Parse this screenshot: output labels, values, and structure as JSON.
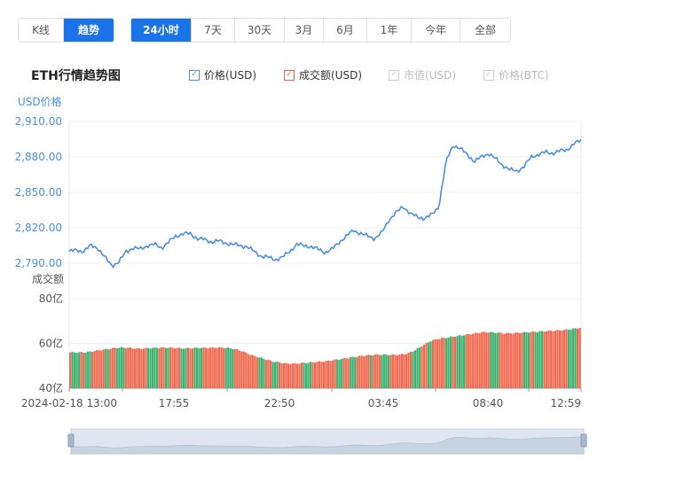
{
  "mode_tabs": [
    {
      "label": "K线",
      "active": false
    },
    {
      "label": "趋势",
      "active": true
    }
  ],
  "range_tabs": [
    {
      "label": "24小时",
      "active": true
    },
    {
      "label": "7天",
      "active": false
    },
    {
      "label": "30天",
      "active": false
    },
    {
      "label": "3月",
      "active": false
    },
    {
      "label": "6月",
      "active": false
    },
    {
      "label": "1年",
      "active": false
    },
    {
      "label": "今年",
      "active": false
    },
    {
      "label": "全部",
      "active": false
    }
  ],
  "chart_title": "ETH行情趋势图",
  "legend": [
    {
      "label": "价格(USD)",
      "checked": true,
      "enabled": true,
      "color": "#4a90e2"
    },
    {
      "label": "成交额(USD)",
      "checked": true,
      "enabled": true,
      "color": "#e8604c"
    },
    {
      "label": "市值(USD)",
      "checked": true,
      "enabled": false,
      "color": "#cccccc"
    },
    {
      "label": "价格(BTC)",
      "checked": true,
      "enabled": false,
      "color": "#cccccc"
    }
  ],
  "colors": {
    "accent": "#1a73e8",
    "price_line": "#4a90e2",
    "vol_up": "#3cb371",
    "vol_down": "#f06a50",
    "axis_text": "#4a90e2"
  },
  "chart_data": {
    "type": "line",
    "price_axis_label": "USD价格",
    "volume_axis_label": "成交额",
    "x_ticks": [
      "2024-02-18 13:00",
      "17:55",
      "22:50",
      "03:45",
      "08:40",
      "12:59"
    ],
    "price_ticks": [
      "2,910.00",
      "2,880.00",
      "2,850.00",
      "2,820.00",
      "2,790.00"
    ],
    "volume_ticks": [
      "80亿",
      "60亿",
      "40亿"
    ],
    "price_ylim": [
      2790,
      2910
    ],
    "volume_ylim": [
      40,
      80
    ],
    "price_series": {
      "name": "价格(USD)",
      "values": [
        2800,
        2801,
        2800,
        2805,
        2803,
        2795,
        2788,
        2791,
        2800,
        2803,
        2802,
        2805,
        2806,
        2803,
        2808,
        2813,
        2815,
        2815,
        2811,
        2810,
        2808,
        2809,
        2807,
        2806,
        2805,
        2804,
        2800,
        2796,
        2795,
        2793,
        2795,
        2800,
        2806,
        2805,
        2804,
        2802,
        2799,
        2802,
        2808,
        2813,
        2818,
        2815,
        2813,
        2811,
        2816,
        2827,
        2833,
        2838,
        2832,
        2829,
        2828,
        2831,
        2838,
        2876,
        2890,
        2887,
        2882,
        2876,
        2880,
        2883,
        2878,
        2873,
        2869,
        2868,
        2872,
        2880,
        2882,
        2884,
        2883,
        2885,
        2886,
        2891,
        2894
      ]
    },
    "volume_series": {
      "name": "成交额(USD)",
      "values": [
        56,
        56,
        56,
        56.5,
        57,
        57.5,
        58,
        58.2,
        58,
        57.6,
        57.8,
        58,
        58.1,
        58.2,
        58,
        57.8,
        57.9,
        58,
        58,
        58.1,
        58.2,
        58,
        57.5,
        56.5,
        55,
        54,
        53,
        52,
        51.5,
        51,
        51,
        51.2,
        51.5,
        51.8,
        52,
        52.5,
        53,
        53.5,
        54,
        54.5,
        54.8,
        55,
        55,
        54.9,
        55,
        55.5,
        57,
        59,
        61,
        62,
        62.5,
        63,
        63.5,
        64,
        64.5,
        65,
        65,
        64.8,
        64.5,
        64.6,
        64.8,
        65,
        65.2,
        65.4,
        65.6,
        65.8,
        66,
        66.5,
        67
      ]
    }
  }
}
